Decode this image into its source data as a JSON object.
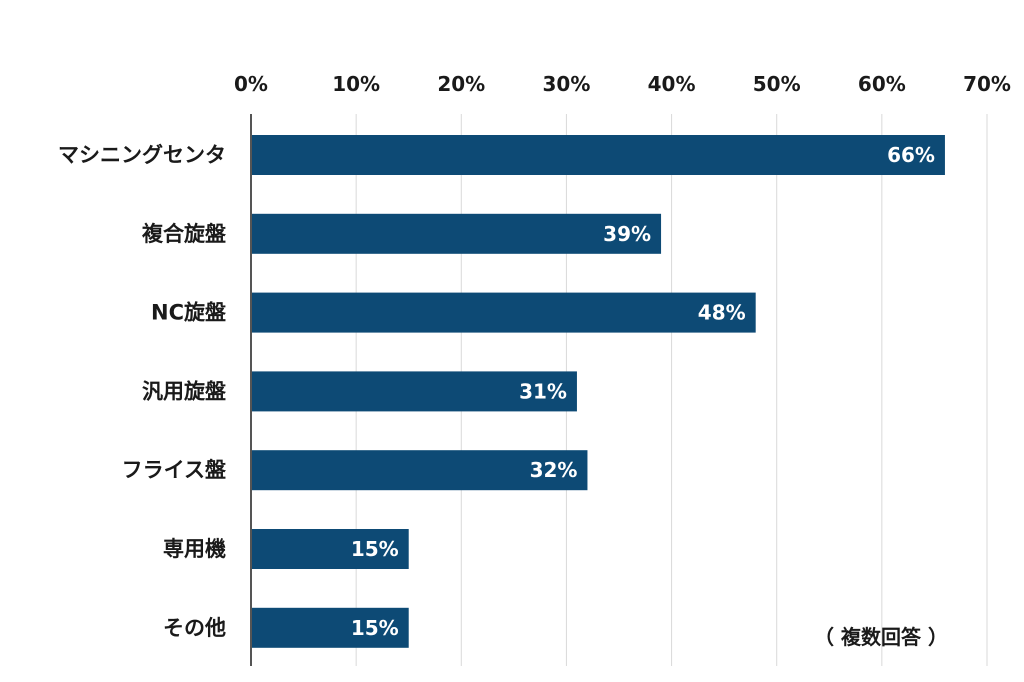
{
  "chart_data": {
    "type": "bar",
    "orientation": "horizontal",
    "categories": [
      "マシニングセンタ",
      "複合旋盤",
      "NC旋盤",
      "汎用旋盤",
      "フライス盤",
      "専用機",
      "その他"
    ],
    "values": [
      66,
      39,
      48,
      31,
      32,
      15,
      15
    ],
    "value_labels": [
      "66%",
      "39%",
      "48%",
      "31%",
      "32%",
      "15%",
      "15%"
    ],
    "xlim": [
      0,
      70
    ],
    "xticks": [
      0,
      10,
      20,
      30,
      40,
      50,
      60,
      70
    ],
    "xtick_labels": [
      "0%",
      "10%",
      "20%",
      "30%",
      "40%",
      "50%",
      "60%",
      "70%"
    ],
    "x_axis_position": "top",
    "grid": true,
    "bar_color": "#0d4a75",
    "grid_color": "#d9d9d9",
    "annotation": "（ 複数回答 ）"
  }
}
